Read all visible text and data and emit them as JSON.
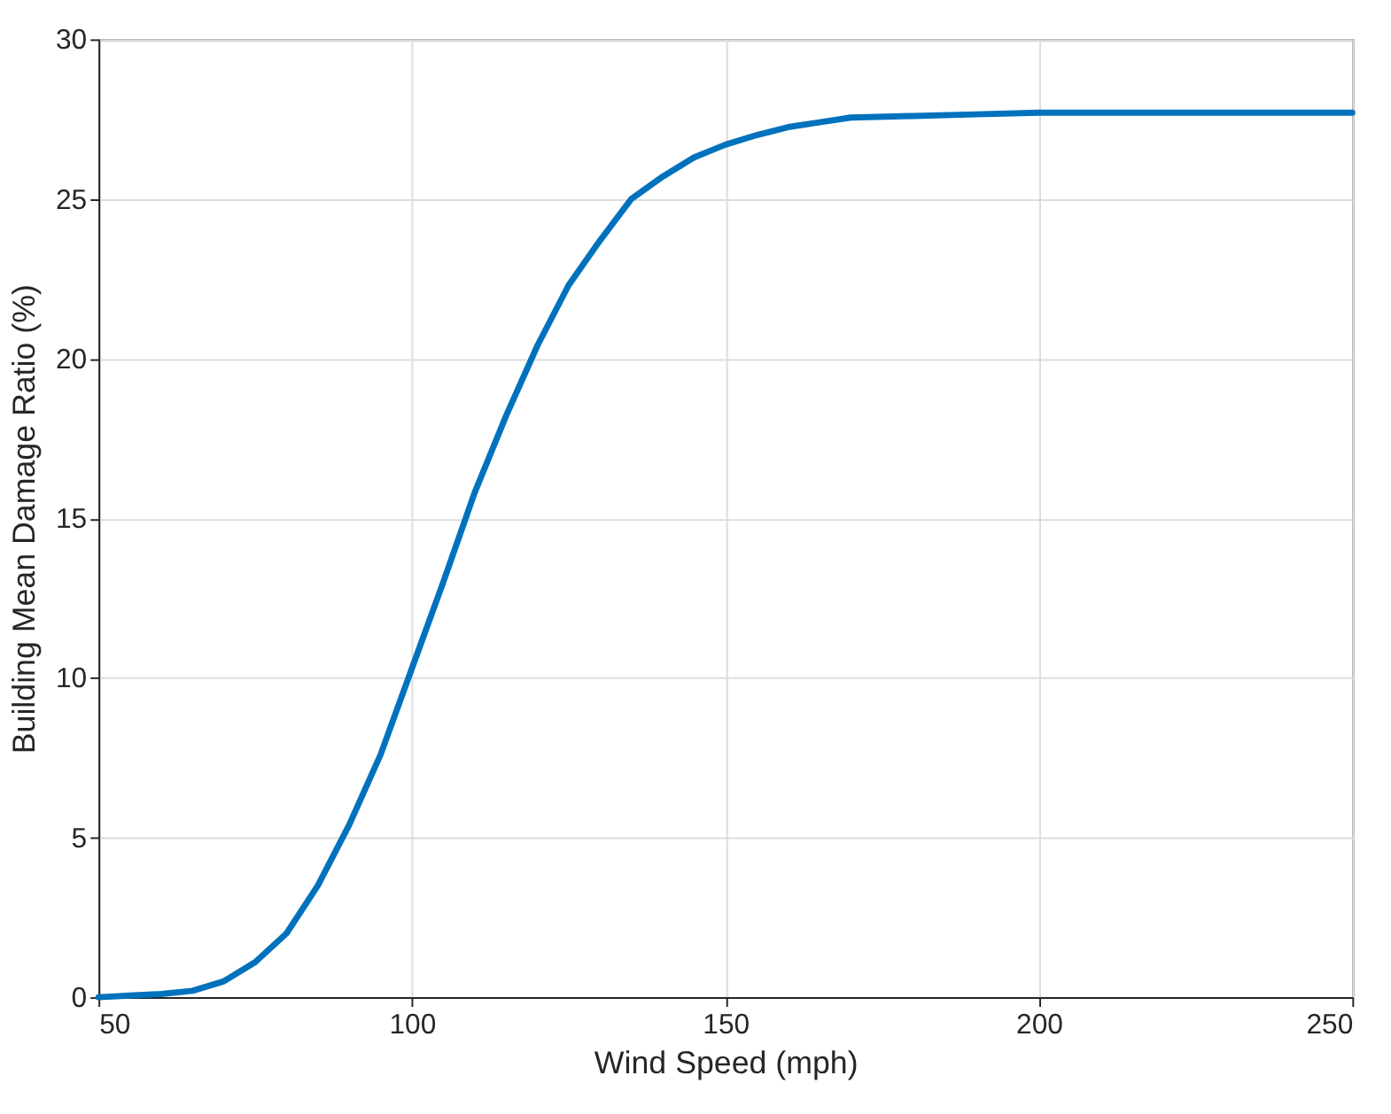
{
  "chart_data": {
    "type": "line",
    "xlabel": "Wind Speed (mph)",
    "ylabel": "Building Mean Damage Ratio (%)",
    "x": [
      50,
      55,
      60,
      65,
      70,
      75,
      80,
      85,
      90,
      95,
      100,
      105,
      110,
      115,
      120,
      125,
      130,
      135,
      140,
      145,
      150,
      155,
      160,
      165,
      170,
      180,
      190,
      200,
      250
    ],
    "series": [
      {
        "color": "#0072bd",
        "values": [
          0,
          0.05,
          0.1,
          0.2,
          0.5,
          1.1,
          2.0,
          3.5,
          5.4,
          7.6,
          10.3,
          13.0,
          15.8,
          18.2,
          20.4,
          22.3,
          23.7,
          25.0,
          25.7,
          26.3,
          26.7,
          27.0,
          27.25,
          27.4,
          27.55,
          27.6,
          27.65,
          27.7,
          27.7
        ]
      }
    ],
    "xlim": [
      50,
      250
    ],
    "xticks": [
      50,
      100,
      150,
      200,
      250
    ],
    "ylim": [
      0,
      30
    ],
    "yticks": [
      0,
      5,
      10,
      15,
      20,
      25,
      30
    ],
    "grid": true,
    "marker": "none",
    "line_style": "solid"
  }
}
